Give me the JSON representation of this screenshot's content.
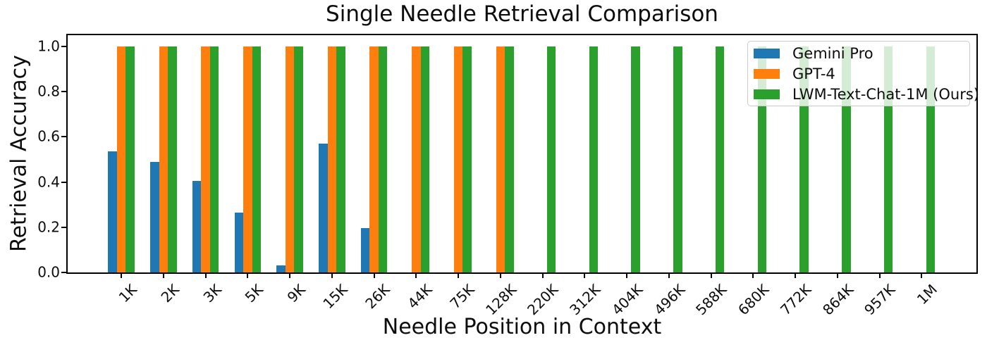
{
  "chart_data": {
    "type": "bar",
    "title": "Single Needle Retrieval Comparison",
    "xlabel": "Needle Position in Context",
    "ylabel": "Retrieval Accuracy",
    "categories": [
      "1K",
      "2K",
      "3K",
      "5K",
      "9K",
      "15K",
      "26K",
      "44K",
      "75K",
      "128K",
      "220K",
      "312K",
      "404K",
      "496K",
      "588K",
      "680K",
      "772K",
      "864K",
      "957K",
      "1M"
    ],
    "yticks": [
      "0.0",
      "0.2",
      "0.4",
      "0.6",
      "0.8",
      "1.0"
    ],
    "ylim": [
      0,
      1.05
    ],
    "grid": false,
    "legend_position": "upper right",
    "series": [
      {
        "name": "Gemini Pro",
        "color": "#1f77b4",
        "values": [
          0.535,
          0.49,
          0.405,
          0.265,
          0.03,
          0.57,
          0.195,
          null,
          null,
          null,
          null,
          null,
          null,
          null,
          null,
          null,
          null,
          null,
          null,
          null
        ]
      },
      {
        "name": "GPT-4",
        "color": "#ff7f0e",
        "values": [
          1.0,
          1.0,
          1.0,
          1.0,
          1.0,
          1.0,
          1.0,
          1.0,
          1.0,
          1.0,
          null,
          null,
          null,
          null,
          null,
          null,
          null,
          null,
          null,
          null
        ]
      },
      {
        "name": "LWM-Text-Chat-1M (Ours)",
        "color": "#2ca02c",
        "values": [
          1.0,
          1.0,
          1.0,
          1.0,
          1.0,
          1.0,
          1.0,
          1.0,
          1.0,
          1.0,
          1.0,
          1.0,
          1.0,
          1.0,
          1.0,
          1.0,
          1.0,
          1.0,
          1.0,
          1.0
        ]
      }
    ]
  }
}
